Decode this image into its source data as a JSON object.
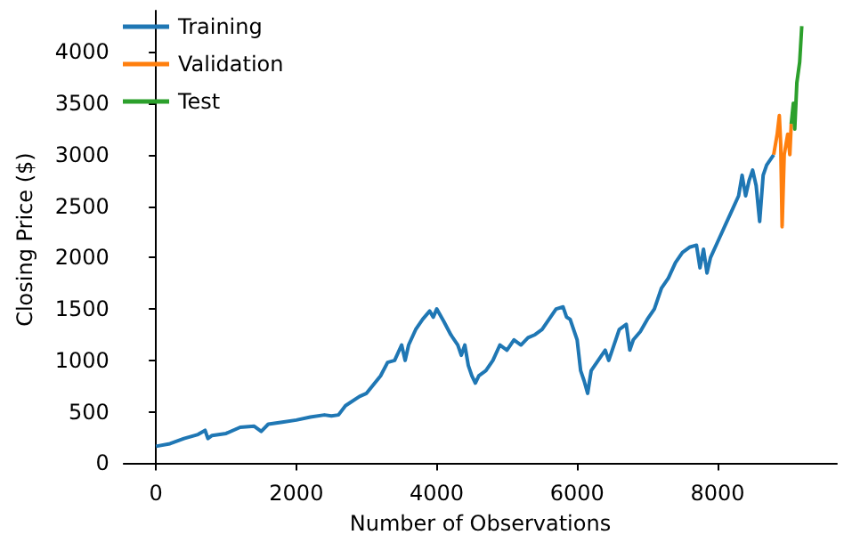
{
  "chart_data": {
    "type": "line",
    "xlabel": "Number of Observations",
    "ylabel": "Closing Price ($)",
    "xlim": [
      -460,
      9700
    ],
    "ylim": [
      -50,
      4400
    ],
    "xticks": [
      0,
      2000,
      4000,
      6000,
      8000
    ],
    "yticks": [
      0,
      500,
      1000,
      1500,
      2000,
      2500,
      3000,
      3500,
      4000
    ],
    "grid": false,
    "legend": "top left",
    "marker": "none",
    "line_style": "solid",
    "series": [
      {
        "name": "Training",
        "color": "#1f77b4",
        "x": [
          0,
          200,
          400,
          600,
          700,
          740,
          800,
          1000,
          1200,
          1400,
          1500,
          1600,
          1800,
          2000,
          2200,
          2400,
          2500,
          2600,
          2700,
          2900,
          3000,
          3200,
          3300,
          3400,
          3500,
          3550,
          3600,
          3700,
          3800,
          3900,
          3950,
          4000,
          4100,
          4200,
          4300,
          4350,
          4400,
          4450,
          4500,
          4550,
          4600,
          4700,
          4800,
          4900,
          5000,
          5100,
          5200,
          5300,
          5400,
          5500,
          5600,
          5700,
          5800,
          5850,
          5900,
          6000,
          6050,
          6100,
          6150,
          6200,
          6300,
          6400,
          6450,
          6500,
          6600,
          6700,
          6750,
          6800,
          6900,
          7000,
          7100,
          7200,
          7300,
          7400,
          7500,
          7600,
          7700,
          7750,
          7800,
          7850,
          7900,
          8000,
          8100,
          8200,
          8300,
          8350,
          8400,
          8450,
          8500,
          8550,
          8600,
          8650,
          8700,
          8750,
          8800
        ],
        "values": [
          165,
          190,
          240,
          280,
          320,
          240,
          270,
          290,
          350,
          360,
          310,
          380,
          400,
          420,
          450,
          470,
          460,
          470,
          560,
          650,
          680,
          850,
          980,
          1000,
          1150,
          1000,
          1150,
          1300,
          1400,
          1480,
          1420,
          1500,
          1380,
          1250,
          1150,
          1050,
          1150,
          950,
          850,
          780,
          850,
          900,
          1000,
          1150,
          1100,
          1200,
          1150,
          1220,
          1250,
          1300,
          1400,
          1500,
          1520,
          1420,
          1400,
          1200,
          900,
          800,
          680,
          900,
          1000,
          1100,
          1000,
          1100,
          1300,
          1350,
          1100,
          1200,
          1280,
          1400,
          1500,
          1700,
          1800,
          1950,
          2050,
          2100,
          2120,
          1900,
          2080,
          1850,
          2000,
          2150,
          2300,
          2450,
          2600,
          2800,
          2600,
          2750,
          2850,
          2700,
          2350,
          2800,
          2900,
          2950,
          3000
        ]
      },
      {
        "name": "Validation",
        "color": "#ff7f0e",
        "x": [
          8800,
          8850,
          8880,
          8900,
          8920,
          8950,
          9000,
          9030,
          9050
        ],
        "values": [
          3000,
          3200,
          3380,
          3100,
          2300,
          3000,
          3200,
          3000,
          3300
        ]
      },
      {
        "name": "Test",
        "color": "#2ca02c",
        "x": [
          9050,
          9080,
          9100,
          9130,
          9170,
          9200
        ],
        "values": [
          3300,
          3500,
          3250,
          3700,
          3900,
          4250
        ]
      }
    ]
  }
}
